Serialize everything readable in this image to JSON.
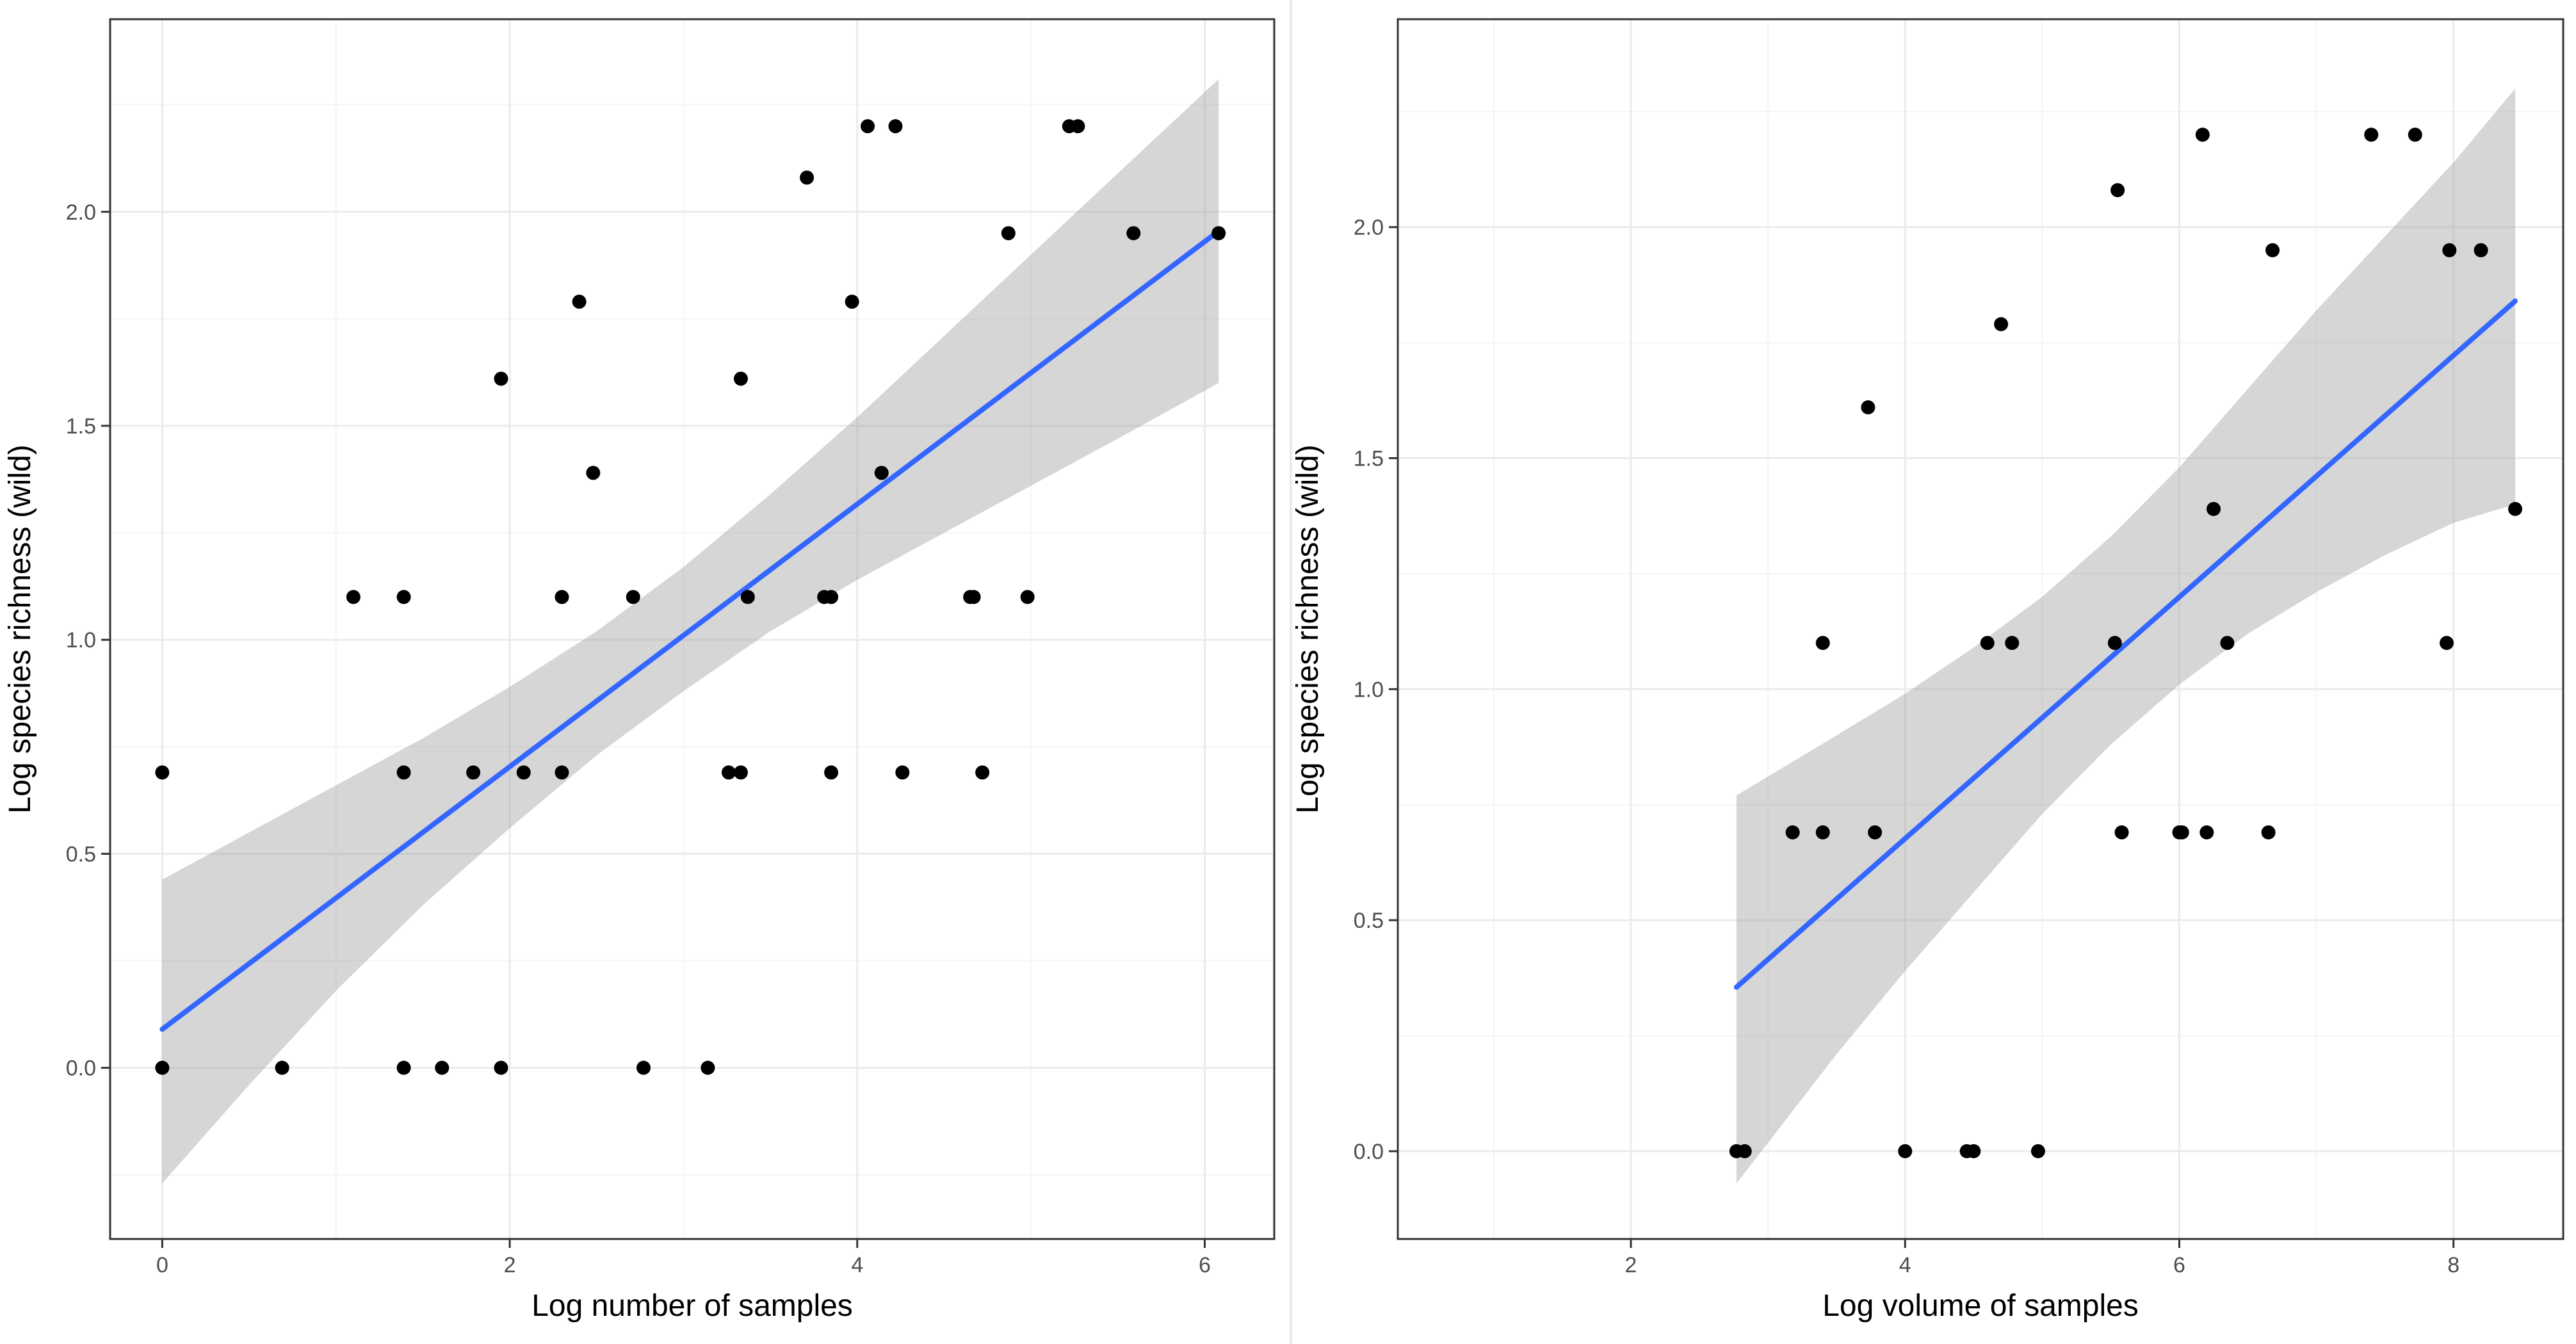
{
  "chart_data": [
    {
      "type": "scatter",
      "title": "",
      "xlabel": "Log number of samples",
      "ylabel": "Log species richness (wild)",
      "xlim": [
        -0.3,
        6.4
      ],
      "ylim": [
        -0.4,
        2.45
      ],
      "x_ticks": [
        0,
        2,
        4,
        6
      ],
      "x_tick_labels": [
        "0",
        "2",
        "4",
        "6"
      ],
      "y_ticks": [
        0,
        0.5,
        1,
        1.5,
        2
      ],
      "y_tick_labels": [
        "0.0",
        "0.5",
        "1.0",
        "1.5",
        "2.0"
      ],
      "grid": true,
      "points": [
        [
          0,
          0.69
        ],
        [
          0,
          0
        ],
        [
          0.69,
          0
        ],
        [
          1.1,
          1.1
        ],
        [
          1.39,
          1.1
        ],
        [
          1.39,
          0.69
        ],
        [
          1.39,
          0
        ],
        [
          1.61,
          0
        ],
        [
          1.79,
          0.69
        ],
        [
          1.95,
          1.61
        ],
        [
          1.95,
          0
        ],
        [
          2.08,
          0.69
        ],
        [
          2.3,
          1.1
        ],
        [
          2.3,
          0.69
        ],
        [
          2.4,
          1.79
        ],
        [
          2.48,
          1.39
        ],
        [
          2.71,
          1.1
        ],
        [
          2.77,
          0
        ],
        [
          3.14,
          0
        ],
        [
          3.26,
          0.69
        ],
        [
          3.33,
          1.61
        ],
        [
          3.33,
          0.69
        ],
        [
          3.37,
          1.1
        ],
        [
          3.71,
          2.08
        ],
        [
          3.81,
          1.1
        ],
        [
          3.85,
          1.1
        ],
        [
          3.85,
          0.69
        ],
        [
          3.97,
          1.79
        ],
        [
          4.06,
          2.2
        ],
        [
          4.14,
          1.39
        ],
        [
          4.22,
          2.2
        ],
        [
          4.26,
          0.69
        ],
        [
          4.65,
          1.1
        ],
        [
          4.67,
          1.1
        ],
        [
          4.72,
          0.69
        ],
        [
          4.87,
          1.95
        ],
        [
          4.98,
          1.1
        ],
        [
          5.22,
          2.2
        ],
        [
          5.27,
          2.2
        ],
        [
          5.59,
          1.95
        ],
        [
          6.08,
          1.95
        ]
      ],
      "fit_line": {
        "x": [
          0,
          6.08
        ],
        "y": [
          0.09,
          1.955
        ],
        "color": "#3366ff"
      },
      "confidence_band": {
        "x": [
          0,
          0.5,
          1,
          1.5,
          2,
          2.5,
          3,
          3.5,
          4,
          4.5,
          5,
          5.5,
          6.08
        ],
        "lower": [
          -0.27,
          -0.04,
          0.18,
          0.38,
          0.56,
          0.73,
          0.88,
          1.02,
          1.14,
          1.25,
          1.36,
          1.47,
          1.6
        ],
        "upper": [
          0.44,
          0.55,
          0.66,
          0.77,
          0.89,
          1.02,
          1.17,
          1.34,
          1.52,
          1.71,
          1.9,
          2.09,
          2.31
        ]
      }
    },
    {
      "type": "scatter",
      "title": "",
      "xlabel": "Log volume of samples",
      "ylabel": "Log species richness (wild)",
      "xlim": [
        0.3,
        8.8
      ],
      "ylim": [
        -0.19,
        2.45
      ],
      "x_ticks": [
        2,
        4,
        6,
        8
      ],
      "x_tick_labels": [
        "2",
        "4",
        "6",
        "8"
      ],
      "y_ticks": [
        0,
        0.5,
        1,
        1.5,
        2
      ],
      "y_tick_labels": [
        "0.0",
        "0.5",
        "1.0",
        "1.5",
        "2.0"
      ],
      "grid": true,
      "points": [
        [
          2.77,
          0
        ],
        [
          2.83,
          0
        ],
        [
          3.18,
          0.69
        ],
        [
          3.4,
          1.1
        ],
        [
          3.4,
          0.69
        ],
        [
          3.73,
          1.61
        ],
        [
          3.78,
          0.69
        ],
        [
          4.0,
          0
        ],
        [
          4.45,
          0
        ],
        [
          4.5,
          0
        ],
        [
          4.6,
          1.1
        ],
        [
          4.7,
          1.79
        ],
        [
          4.78,
          1.1
        ],
        [
          4.97,
          0
        ],
        [
          5.53,
          1.1
        ],
        [
          5.55,
          2.08
        ],
        [
          5.58,
          0.69
        ],
        [
          6.0,
          0.69
        ],
        [
          6.02,
          0.69
        ],
        [
          6.17,
          2.2
        ],
        [
          6.2,
          0.69
        ],
        [
          6.25,
          1.39
        ],
        [
          6.35,
          1.1
        ],
        [
          6.65,
          0.69
        ],
        [
          6.68,
          1.95
        ],
        [
          7.4,
          2.2
        ],
        [
          7.72,
          2.2
        ],
        [
          7.95,
          1.1
        ],
        [
          7.97,
          1.95
        ],
        [
          8.2,
          1.95
        ],
        [
          8.45,
          1.39
        ]
      ],
      "fit_line": {
        "x": [
          2.77,
          8.45
        ],
        "y": [
          0.355,
          1.84
        ],
        "color": "#3366ff"
      },
      "confidence_band": {
        "x": [
          2.77,
          3.5,
          4,
          4.5,
          5,
          5.5,
          6,
          6.5,
          7,
          7.5,
          8,
          8.45
        ],
        "lower": [
          -0.07,
          0.21,
          0.39,
          0.56,
          0.73,
          0.88,
          1.01,
          1.12,
          1.21,
          1.29,
          1.36,
          1.4
        ],
        "upper": [
          0.77,
          0.9,
          0.99,
          1.09,
          1.2,
          1.33,
          1.48,
          1.65,
          1.82,
          1.98,
          2.14,
          2.3
        ]
      }
    }
  ]
}
